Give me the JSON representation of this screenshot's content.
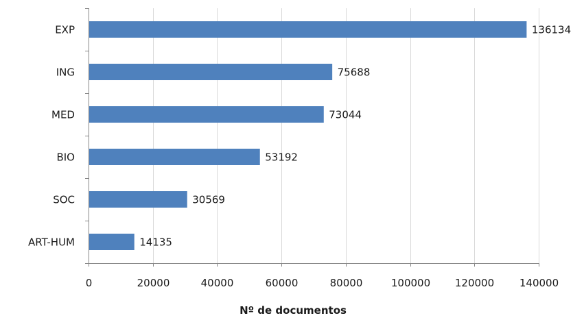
{
  "chart_data": {
    "type": "bar",
    "orientation": "horizontal",
    "categories": [
      "EXP",
      "ING",
      "MED",
      "BIO",
      "SOC",
      "ART-HUM"
    ],
    "values": [
      136134,
      75688,
      73044,
      53192,
      30569,
      14135
    ],
    "data_labels": [
      "136134",
      "75688",
      "73044",
      "53192",
      "30569",
      "14135"
    ],
    "title": "",
    "xlabel": "Nº de documentos",
    "ylabel": "",
    "xlim": [
      0,
      140000
    ],
    "x_ticks": [
      0,
      20000,
      40000,
      60000,
      80000,
      100000,
      120000,
      140000
    ],
    "x_tick_labels": [
      "0",
      "20000",
      "40000",
      "60000",
      "80000",
      "100000",
      "120000",
      "140000"
    ],
    "grid": "vertical",
    "legend": "none",
    "colors": {
      "bar": "#4f81bd",
      "grid": "#d9d9d9",
      "axis": "#868686",
      "text": "#1a1a1a"
    }
  }
}
